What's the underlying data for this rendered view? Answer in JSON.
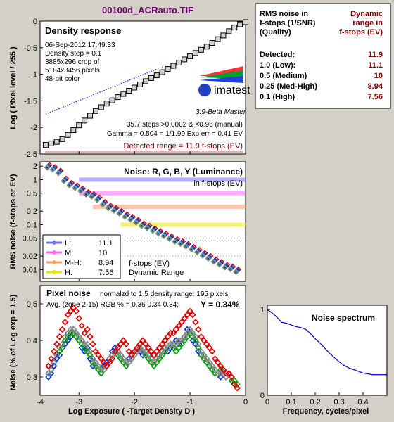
{
  "file_title": "00100d_ACRauto.TIF",
  "density_panel": {
    "heading": "Density response",
    "info_lines": [
      "06-Sep-2012 17:49:33",
      "Density step = 0.1",
      "3885x296 crop of",
      "5184x3456 pixels",
      "48-bit color"
    ],
    "logo_text": "imatest",
    "version_text": "3.9-Beta  Master",
    "stats_line1": "35.7 steps >0.0002 & <0.96 (manual)",
    "stats_line2": "Gamma = 0.504 = 1/1.99   Exp err = 0.41 EV",
    "detected_range": "Detected range = 11.9 f-stops (EV)",
    "ylabel": "Log ( Pixel level / 255 )"
  },
  "noise_panel": {
    "heading": "Noise: R, G, B, Y (Luminance)",
    "subheading": "in f-stops (EV)",
    "ylabel": "RMS noise (f-stops or EV)",
    "legend": [
      {
        "label": "L:",
        "value": "11.1",
        "color": "#7070ff"
      },
      {
        "label": "M:",
        "value": "10",
        "color": "#ff66ff"
      },
      {
        "label": "M-H:",
        "value": "8.94",
        "color": "#ff9966"
      },
      {
        "label": "H:",
        "value": "7.56",
        "color": "#e6e600"
      }
    ],
    "legend_note1": "f-stops (EV)",
    "legend_note2": "Dynamic Range"
  },
  "pixel_noise_panel": {
    "heading": "Pixel noise",
    "normalized": "normalzd to 1.5 density range: 195 pixels",
    "avg_line": "Avg. (zone 2-15) RGB % = 0.36  0.34  0.34;",
    "y_value": "Y = 0.34%",
    "ylabel": "Noise (% of Log exp = 1.5)",
    "xlabel": "Log Exposure ( -Target Density D )"
  },
  "spectrum_panel": {
    "heading": "Noise spectrum",
    "xlabel": "Frequency, cycles/pixel"
  },
  "dr_table": {
    "header_left": [
      "RMS noise in",
      "f-stops (1/SNR)",
      "(Quality)"
    ],
    "header_right": [
      "Dynamic",
      "range in",
      "f-stops (EV)"
    ],
    "rows": [
      {
        "label": "Detected:",
        "value": "11.9"
      },
      {
        "label": "1.0  (Low):",
        "value": "11.1"
      },
      {
        "label": "0.5  (Medium)",
        "value": "10"
      },
      {
        "label": "0.25 (Med-High)",
        "value": "8.94"
      },
      {
        "label": "0.1  (High)",
        "value": "7.56"
      }
    ]
  },
  "chart_data": [
    {
      "type": "line",
      "title": "Density response",
      "ylabel": "Log ( Pixel level / 255 )",
      "xlim": [
        -3.7,
        0
      ],
      "ylim": [
        -2.5,
        0
      ],
      "yticks": [
        -2.5,
        -2,
        -1.5,
        -1,
        -0.5,
        0
      ],
      "series": [
        {
          "type": "line-markers",
          "x": [
            -3.6,
            -3.5,
            -3.4,
            -3.3,
            -3.2,
            -3.1,
            -3.0,
            -2.9,
            -2.8,
            -2.7,
            -2.6,
            -2.5,
            -2.4,
            -2.3,
            -2.2,
            -2.1,
            -2.0,
            -1.9,
            -1.8,
            -1.7,
            -1.6,
            -1.5,
            -1.4,
            -1.3,
            -1.2,
            -1.1,
            -1.0,
            -0.9,
            -0.8,
            -0.7,
            -0.6,
            -0.5,
            -0.4,
            -0.3,
            -0.2,
            -0.1,
            0.0
          ],
          "y": [
            -2.33,
            -2.3,
            -2.27,
            -2.22,
            -2.14,
            -2.05,
            -1.96,
            -1.87,
            -1.78,
            -1.69,
            -1.62,
            -1.55,
            -1.49,
            -1.43,
            -1.37,
            -1.31,
            -1.25,
            -1.19,
            -1.13,
            -1.07,
            -1.02,
            -0.96,
            -0.9,
            -0.84,
            -0.78,
            -0.72,
            -0.66,
            -0.6,
            -0.54,
            -0.48,
            -0.41,
            -0.34,
            -0.27,
            -0.19,
            -0.12,
            -0.06,
            -0.02
          ]
        },
        {
          "type": "dotted",
          "x": [
            -3.6,
            -1.5
          ],
          "y": [
            -1.75,
            -0.86
          ]
        }
      ]
    },
    {
      "type": "scatter",
      "title": "Noise: R, G, B, Y (Luminance)",
      "ylabel": "RMS noise (f-stops or EV)",
      "yscale": "log",
      "yticks": [
        2,
        1,
        0.5,
        0.2,
        0.1,
        0.05,
        0.02,
        0.01
      ],
      "xlim": [
        -3.7,
        0
      ],
      "hbands": [
        {
          "y": 1.0,
          "x0": -3.0,
          "color": "#7070ff"
        },
        {
          "y": 0.5,
          "x0": -3.0,
          "color": "#ff66ff"
        },
        {
          "y": 0.25,
          "x0": -2.75,
          "color": "#ff9966"
        },
        {
          "y": 0.1,
          "x0": -2.25,
          "color": "#e6e600"
        }
      ],
      "x": [
        -3.55,
        -3.45,
        -3.35,
        -3.25,
        -3.15,
        -3.05,
        -2.95,
        -2.85,
        -2.75,
        -2.65,
        -2.55,
        -2.45,
        -2.35,
        -2.25,
        -2.15,
        -2.05,
        -1.95,
        -1.85,
        -1.75,
        -1.65,
        -1.55,
        -1.45,
        -1.35,
        -1.25,
        -1.15,
        -1.05,
        -0.95,
        -0.85,
        -0.75,
        -0.65,
        -0.55,
        -0.45,
        -0.35,
        -0.25,
        -0.15
      ],
      "y": [
        2.0,
        1.8,
        1.5,
        1.0,
        0.8,
        0.7,
        0.6,
        0.5,
        0.45,
        0.38,
        0.3,
        0.25,
        0.22,
        0.19,
        0.16,
        0.14,
        0.12,
        0.1,
        0.09,
        0.078,
        0.068,
        0.06,
        0.052,
        0.045,
        0.04,
        0.035,
        0.03,
        0.026,
        0.022,
        0.019,
        0.016,
        0.014,
        0.012,
        0.011,
        0.0095
      ]
    },
    {
      "type": "scatter",
      "title": "Pixel noise",
      "ylabel": "Noise (% of Log exp = 1.5)",
      "xlabel": "Log Exposure ( -Target Density D )",
      "xlim": [
        -3.7,
        0
      ],
      "ylim": [
        0.25,
        0.55
      ],
      "xticks": [
        -4,
        -3,
        -2,
        -1,
        0
      ],
      "yticks": [
        0.3,
        0.4,
        0.5
      ],
      "x": [
        -3.55,
        -3.5,
        -3.45,
        -3.4,
        -3.35,
        -3.3,
        -3.25,
        -3.2,
        -3.15,
        -3.1,
        -3.05,
        -3.0,
        -2.95,
        -2.9,
        -2.85,
        -2.8,
        -2.75,
        -2.7,
        -2.65,
        -2.6,
        -2.55,
        -2.5,
        -2.45,
        -2.4,
        -2.35,
        -2.3,
        -2.25,
        -2.2,
        -2.15,
        -2.1,
        -2.05,
        -2.0,
        -1.95,
        -1.9,
        -1.85,
        -1.8,
        -1.75,
        -1.7,
        -1.65,
        -1.6,
        -1.55,
        -1.5,
        -1.45,
        -1.4,
        -1.35,
        -1.3,
        -1.25,
        -1.2,
        -1.15,
        -1.1,
        -1.05,
        -1.0,
        -0.95,
        -0.9,
        -0.85,
        -0.8,
        -0.75,
        -0.7,
        -0.65,
        -0.6,
        -0.55,
        -0.5,
        -0.45,
        -0.4,
        -0.35,
        -0.3,
        -0.25,
        -0.2,
        -0.15
      ],
      "y_r": [
        0.33,
        0.35,
        0.37,
        0.39,
        0.41,
        0.43,
        0.45,
        0.47,
        0.48,
        0.49,
        0.48,
        0.46,
        0.44,
        0.42,
        0.43,
        0.41,
        0.39,
        0.37,
        0.36,
        0.35,
        0.34,
        0.33,
        0.34,
        0.35,
        0.37,
        0.38,
        0.39,
        0.4,
        0.39,
        0.37,
        0.36,
        0.37,
        0.38,
        0.39,
        0.4,
        0.39,
        0.38,
        0.37,
        0.36,
        0.37,
        0.38,
        0.39,
        0.4,
        0.41,
        0.42,
        0.42,
        0.43,
        0.44,
        0.45,
        0.46,
        0.47,
        0.48,
        0.47,
        0.45,
        0.43,
        0.41,
        0.4,
        0.39,
        0.38,
        0.37,
        0.35,
        0.34,
        0.33,
        0.32,
        0.31,
        0.31,
        0.3,
        0.28,
        0.27
      ],
      "y_g": [
        0.31,
        0.32,
        0.34,
        0.36,
        0.37,
        0.38,
        0.4,
        0.41,
        0.42,
        0.42,
        0.41,
        0.4,
        0.39,
        0.38,
        0.37,
        0.36,
        0.34,
        0.33,
        0.32,
        0.31,
        0.32,
        0.33,
        0.35,
        0.36,
        0.37,
        0.36,
        0.35,
        0.34,
        0.33,
        0.34,
        0.35,
        0.36,
        0.37,
        0.38,
        0.37,
        0.36,
        0.35,
        0.34,
        0.33,
        0.34,
        0.35,
        0.36,
        0.37,
        0.38,
        0.39,
        0.38,
        0.37,
        0.38,
        0.39,
        0.4,
        0.41,
        0.42,
        0.41,
        0.4,
        0.38,
        0.36,
        0.35,
        0.34,
        0.33,
        0.32,
        0.31,
        0.31,
        0.32,
        0.31,
        0.3,
        0.31,
        0.29,
        0.29,
        0.28
      ],
      "y_b": [
        0.3,
        0.31,
        0.33,
        0.35,
        0.36,
        0.38,
        0.39,
        0.4,
        0.41,
        0.43,
        0.42,
        0.4,
        0.38,
        0.37,
        0.38,
        0.35,
        0.33,
        0.34,
        0.32,
        0.31,
        0.33,
        0.34,
        0.35,
        0.37,
        0.38,
        0.37,
        0.36,
        0.35,
        0.34,
        0.35,
        0.36,
        0.37,
        0.38,
        0.37,
        0.36,
        0.37,
        0.36,
        0.35,
        0.34,
        0.35,
        0.36,
        0.37,
        0.38,
        0.37,
        0.38,
        0.39,
        0.4,
        0.39,
        0.4,
        0.41,
        0.43,
        0.42,
        0.4,
        0.39,
        0.37,
        0.36,
        0.35,
        0.34,
        0.33,
        0.32,
        0.31,
        0.31,
        0.3,
        0.31,
        0.3,
        0.31,
        0.3,
        0.28,
        0.27
      ],
      "y_y": [
        0.31,
        0.32,
        0.34,
        0.36,
        0.38,
        0.39,
        0.41,
        0.42,
        0.43,
        0.43,
        0.42,
        0.41,
        0.4,
        0.39,
        0.39,
        0.37,
        0.35,
        0.34,
        0.33,
        0.32,
        0.32,
        0.33,
        0.35,
        0.36,
        0.37,
        0.37,
        0.36,
        0.35,
        0.34,
        0.34,
        0.35,
        0.36,
        0.37,
        0.38,
        0.37,
        0.37,
        0.36,
        0.35,
        0.34,
        0.35,
        0.36,
        0.37,
        0.38,
        0.38,
        0.39,
        0.39,
        0.39,
        0.4,
        0.4,
        0.41,
        0.42,
        0.43,
        0.42,
        0.41,
        0.39,
        0.37,
        0.36,
        0.35,
        0.34,
        0.33,
        0.32,
        0.31,
        0.31,
        0.31,
        0.3,
        0.31,
        0.3,
        0.28,
        0.27
      ]
    },
    {
      "type": "line",
      "title": "Noise spectrum",
      "xlabel": "Frequency, cycles/pixel",
      "xlim": [
        0,
        0.5
      ],
      "ylim": [
        0,
        1.05
      ],
      "xticks": [
        0,
        0.1,
        0.2,
        0.3,
        0.4
      ],
      "yticks": [
        0,
        1
      ],
      "x": [
        0,
        0.02,
        0.04,
        0.06,
        0.08,
        0.1,
        0.12,
        0.14,
        0.16,
        0.18,
        0.2,
        0.22,
        0.24,
        0.26,
        0.28,
        0.3,
        0.32,
        0.34,
        0.36,
        0.38,
        0.4,
        0.42,
        0.44,
        0.46,
        0.48,
        0.5
      ],
      "y": [
        1.0,
        0.96,
        0.91,
        0.85,
        0.84,
        0.82,
        0.8,
        0.79,
        0.77,
        0.72,
        0.66,
        0.61,
        0.55,
        0.49,
        0.44,
        0.39,
        0.35,
        0.32,
        0.3,
        0.28,
        0.26,
        0.25,
        0.24,
        0.24,
        0.24,
        0.24
      ]
    }
  ]
}
